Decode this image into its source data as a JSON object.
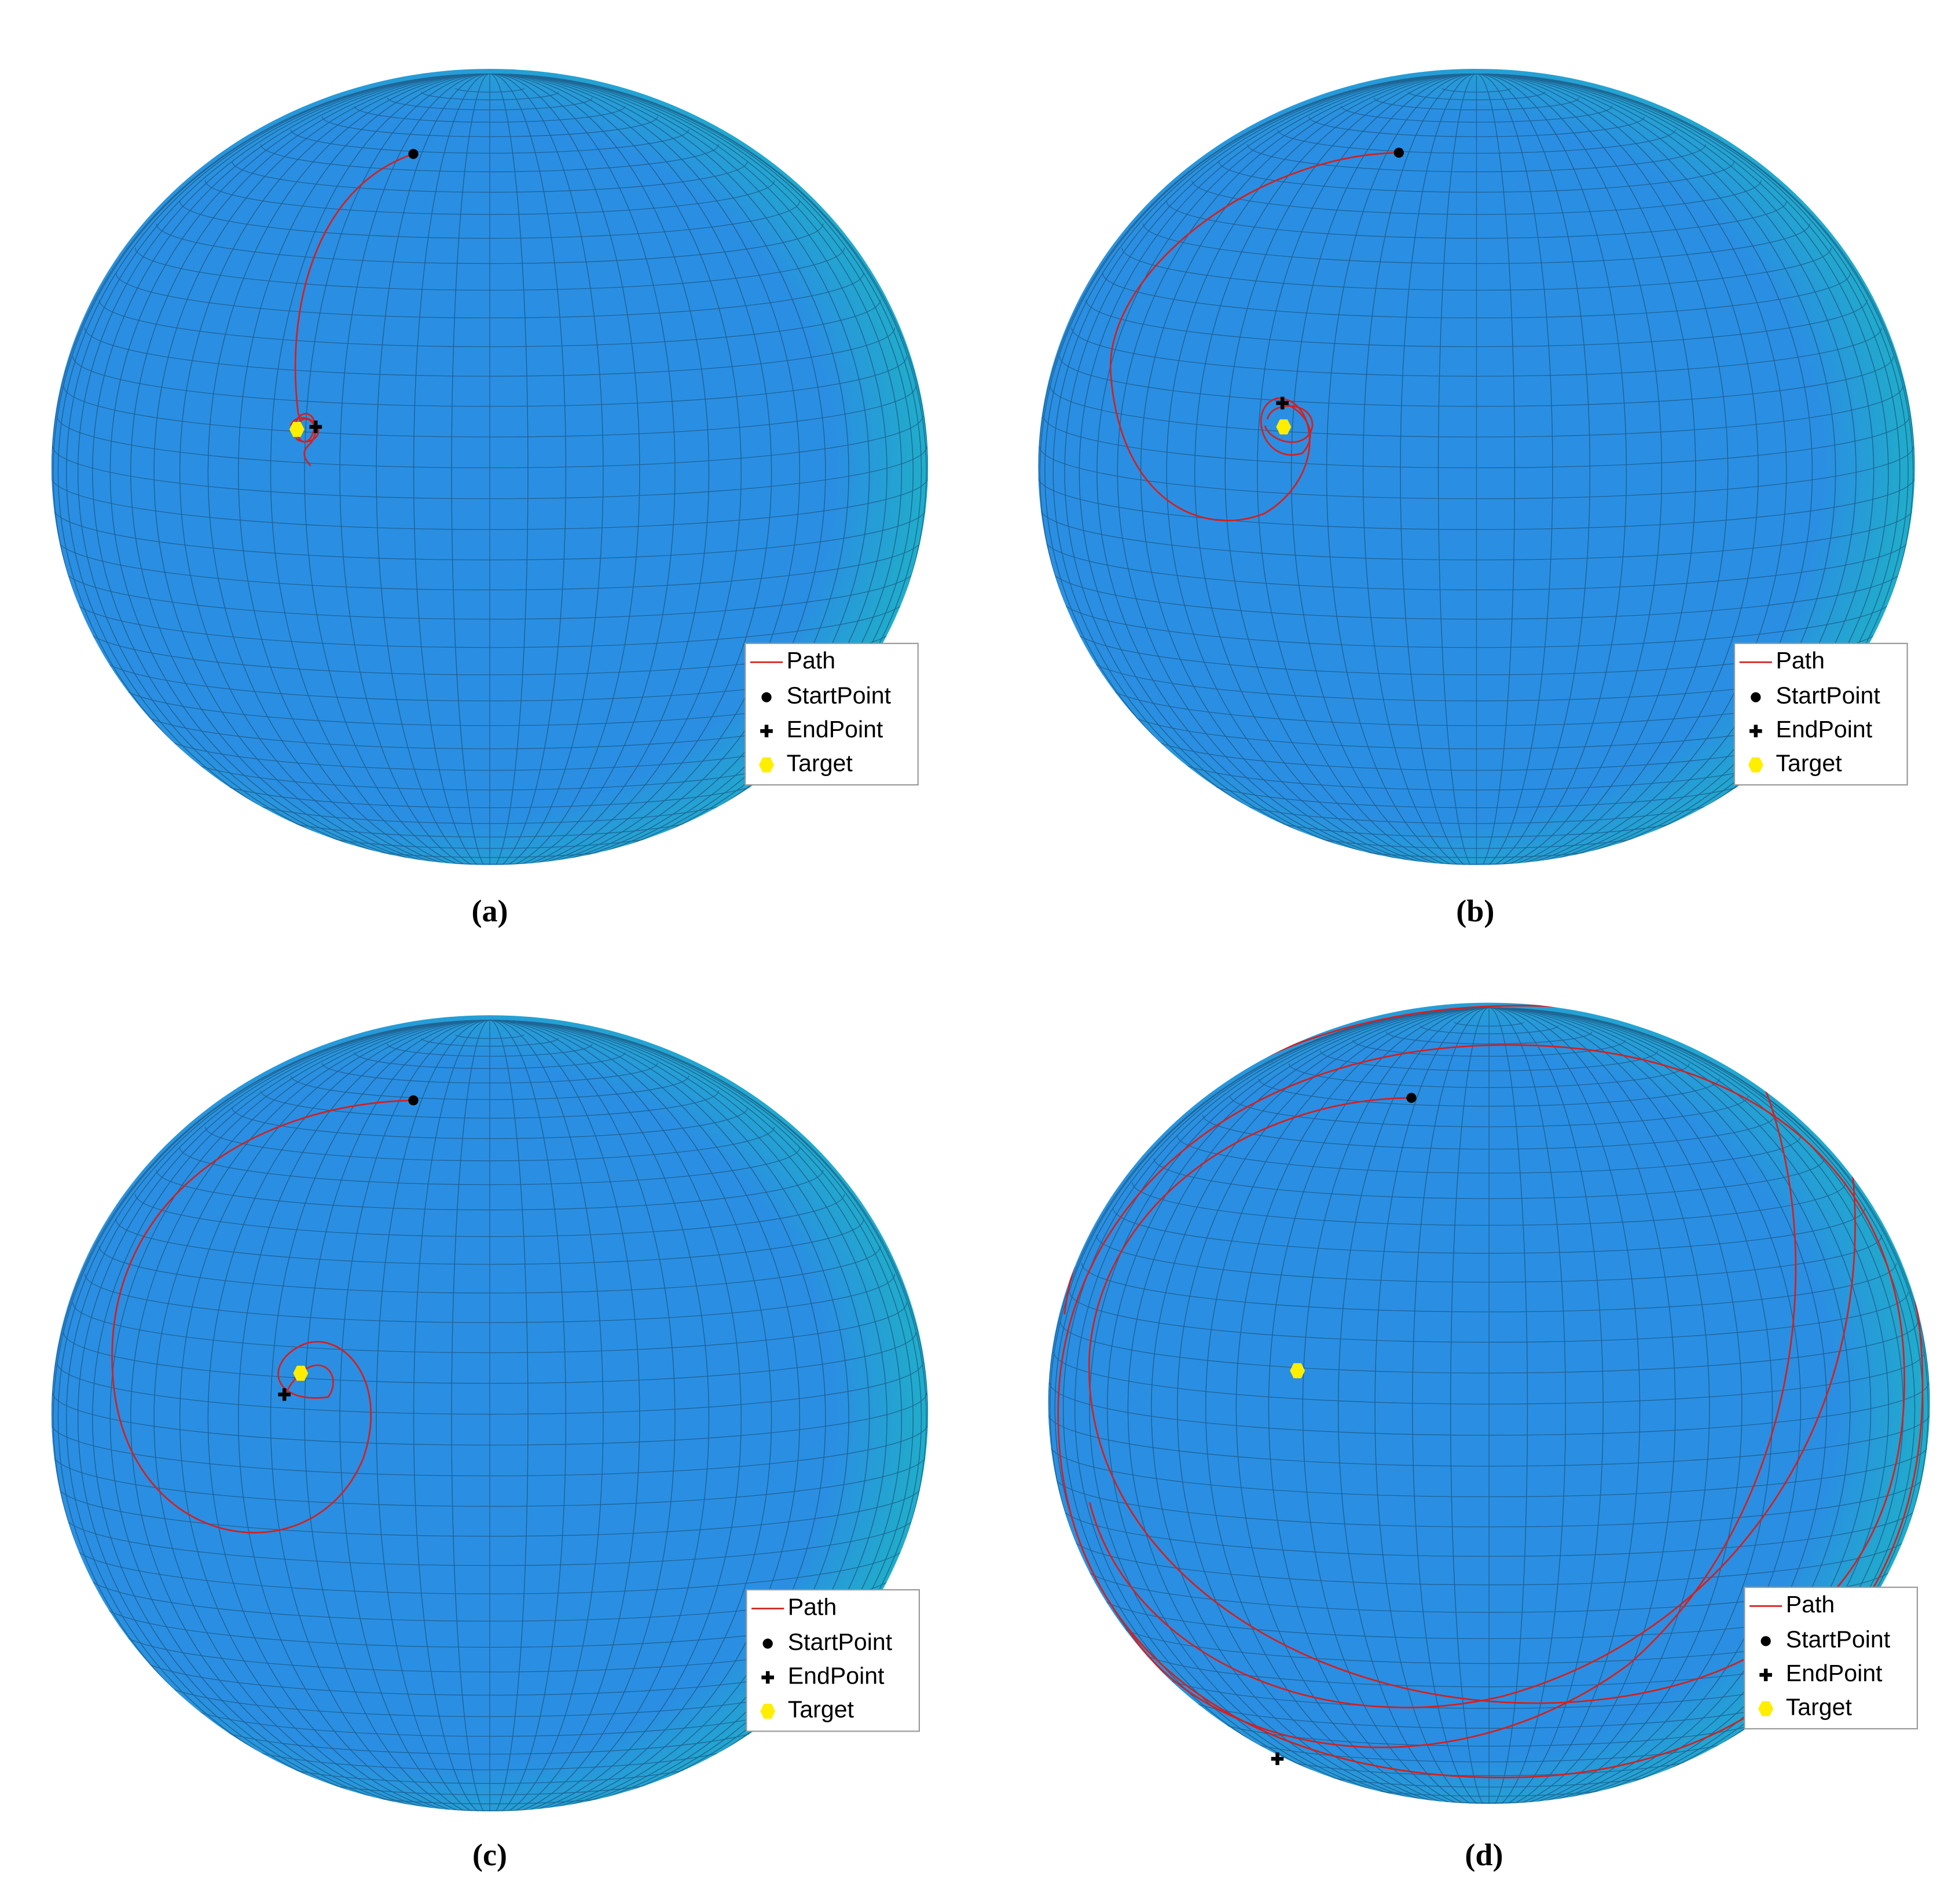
{
  "panels": [
    {
      "caption": "(a)",
      "legend": [
        "Path",
        "StartPoint",
        "EndPoint",
        "Target"
      ]
    },
    {
      "caption": "(b)",
      "legend": [
        "Path",
        "StartPoint",
        "EndPoint",
        "Target"
      ]
    },
    {
      "caption": "(c)",
      "legend": [
        "Path",
        "StartPoint",
        "EndPoint",
        "Target"
      ]
    },
    {
      "caption": "(d)",
      "legend": [
        "Path",
        "StartPoint",
        "EndPoint",
        "Target"
      ]
    }
  ]
}
